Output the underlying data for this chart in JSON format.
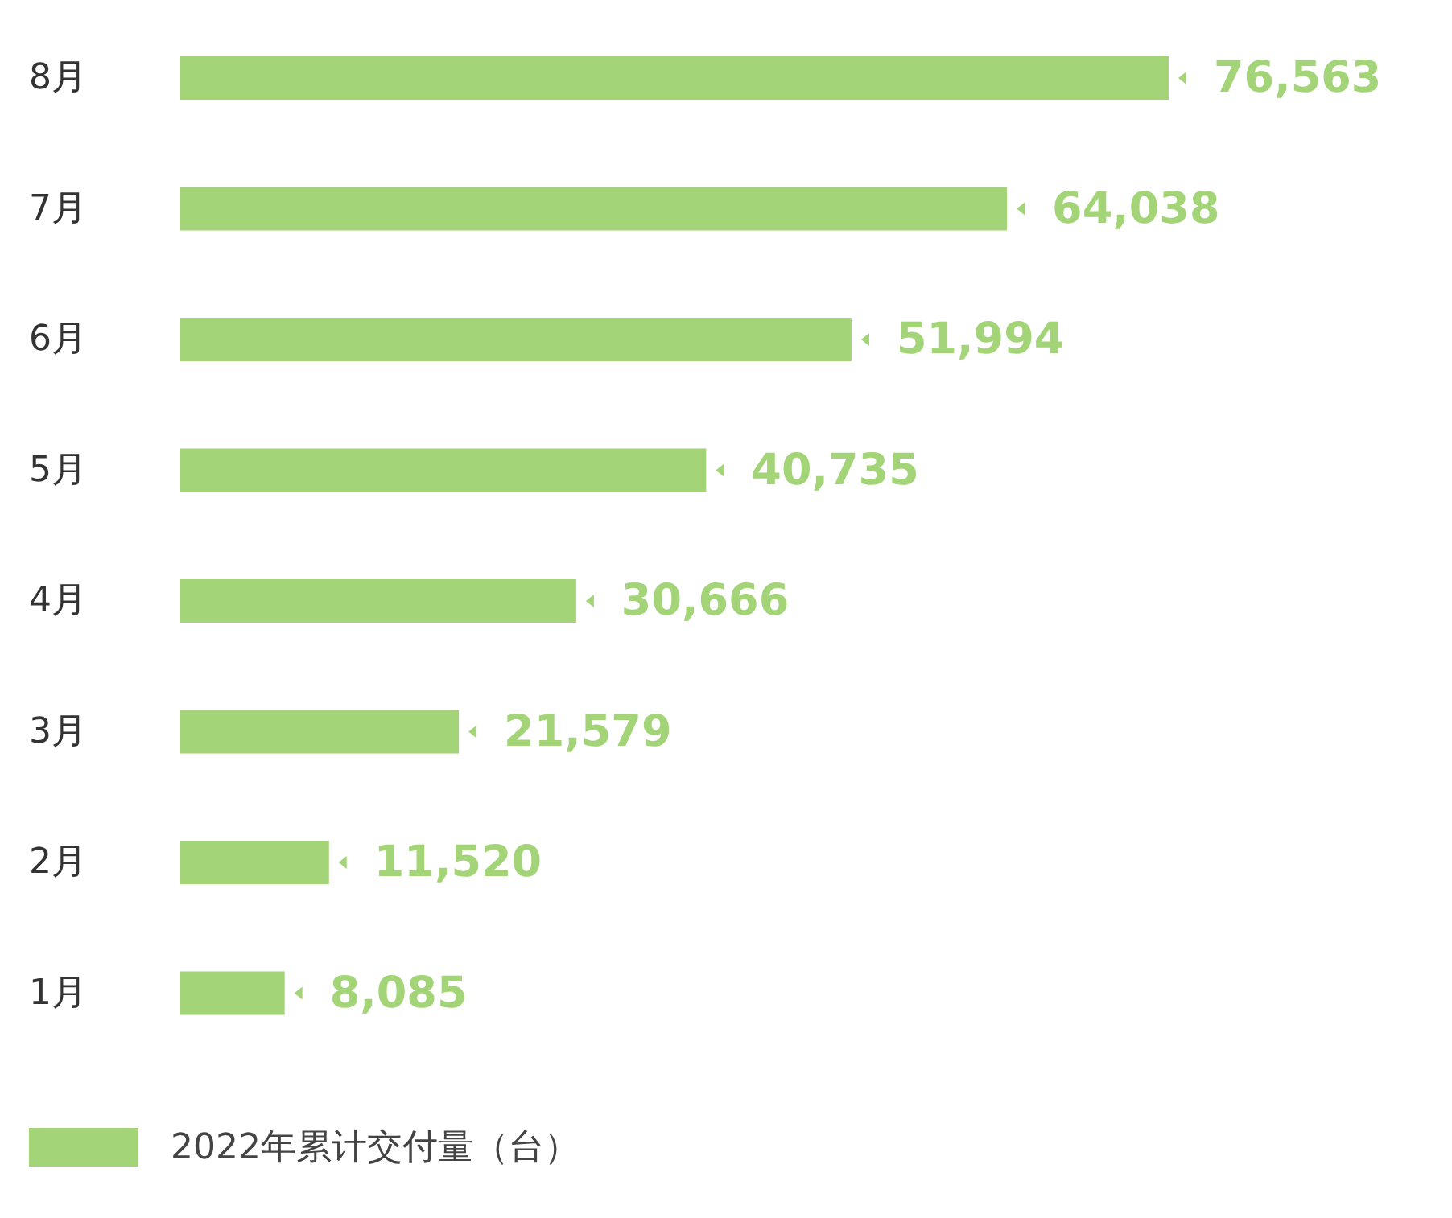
{
  "chart_data": {
    "type": "bar",
    "orientation": "horizontal",
    "categories": [
      "8月",
      "7月",
      "6月",
      "5月",
      "4月",
      "3月",
      "2月",
      "1月"
    ],
    "series": [
      {
        "name": "2022年累计交付量（台）",
        "color": "#a3d477",
        "values": [
          76563,
          64038,
          51994,
          40735,
          30666,
          21579,
          11520,
          8085
        ],
        "value_labels": [
          "76,563",
          "64,038",
          "51,994",
          "40,735",
          "30,666",
          "21,579",
          "11,520",
          "8,085"
        ]
      }
    ],
    "legend": "bottom left",
    "grid": false
  }
}
